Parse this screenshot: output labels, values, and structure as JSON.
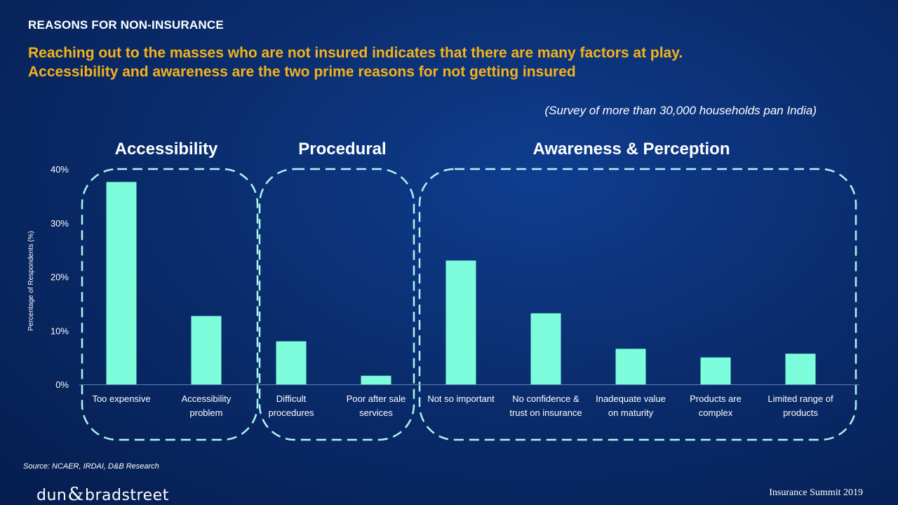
{
  "header": {
    "section_label": "REASONS FOR NON-INSURANCE",
    "headline_line1": "Reaching out to the masses who are not insured indicates that there are many factors at play.",
    "headline_line2": "Accessibility and awareness are the two prime reasons for not getting insured",
    "survey_note": "(Survey of more than 30,000 households pan India)"
  },
  "footer": {
    "source": "Source: NCAER, IRDAI, D&B Research",
    "logo_left": "dun",
    "logo_amp": "&",
    "logo_right": "bradstreet",
    "event": "Insurance Summit 2019"
  },
  "colors": {
    "bar": "#7dfddb",
    "dash": "#aef5f0",
    "headline": "#f5b21b"
  },
  "chart_data": {
    "type": "bar",
    "ylabel": "Percentage of Respondents (%)",
    "ylim": [
      0,
      40
    ],
    "yticks": [
      "0%",
      "10%",
      "20%",
      "30%",
      "40%"
    ],
    "categories": [
      [
        "Too expensive"
      ],
      [
        "Accessibility",
        "problem"
      ],
      [
        "Difficult",
        "procedures"
      ],
      [
        "Poor after sale",
        "services"
      ],
      [
        "Not so important"
      ],
      [
        "No confidence &",
        "trust on insurance"
      ],
      [
        "Inadequate value",
        "on maturity"
      ],
      [
        "Products are",
        "complex"
      ],
      [
        "Limited range of",
        "products"
      ]
    ],
    "values": [
      37.6,
      12.7,
      8.0,
      1.6,
      23.0,
      13.2,
      6.6,
      5.0,
      5.7
    ],
    "groups": [
      {
        "name": "Accessibility",
        "members": [
          0,
          1
        ]
      },
      {
        "name": "Procedural",
        "members": [
          2,
          3
        ]
      },
      {
        "name": "Awareness & Perception",
        "members": [
          4,
          5,
          6,
          7,
          8
        ]
      }
    ],
    "grid": false,
    "legend": "none"
  }
}
